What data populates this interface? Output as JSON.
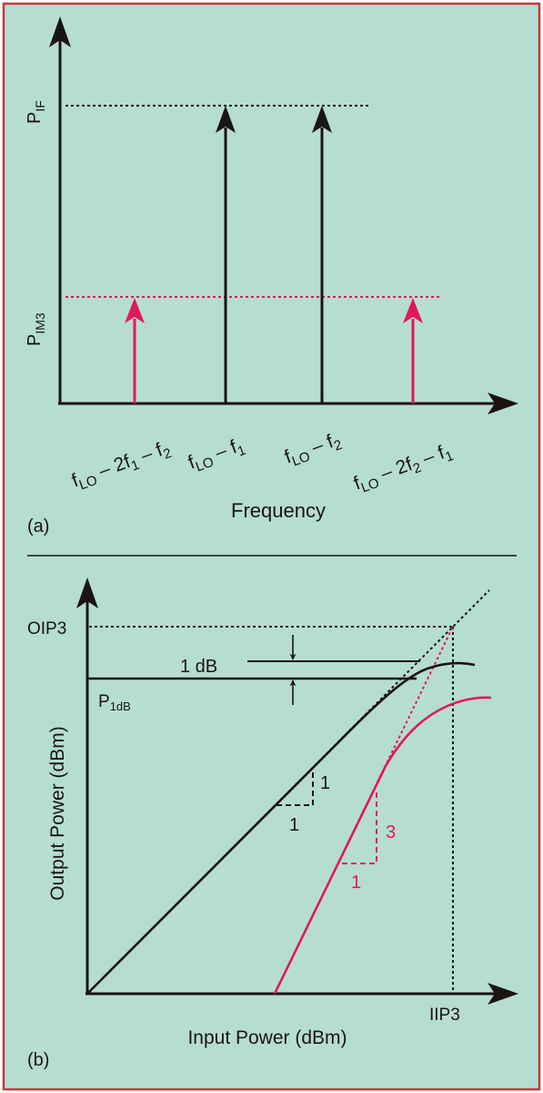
{
  "colors": {
    "background": "#b6ddd2",
    "border": "#c8373c",
    "ink": "#1a1413",
    "accent": "#e0195a"
  },
  "panel_a": {
    "label": "(a)",
    "y_label_if_main": "P",
    "y_label_if_sub": "IF",
    "y_label_im3_main": "P",
    "y_label_im3_sub": "IM3",
    "x_axis_label": "Frequency",
    "tones": [
      {
        "main1": "f",
        "sub1": "LO",
        "main2": " – 2f",
        "sub2": "1",
        "main3": " – f",
        "sub3": "2",
        "kind": "im3"
      },
      {
        "main1": "f",
        "sub1": "LO",
        "main2": " – f",
        "sub2": "1",
        "main3": "",
        "sub3": "",
        "kind": "if"
      },
      {
        "main1": "f",
        "sub1": "LO",
        "main2": " – f",
        "sub2": "2",
        "main3": "",
        "sub3": "",
        "kind": "if"
      },
      {
        "main1": "f",
        "sub1": "LO",
        "main2": " – 2f",
        "sub2": "2",
        "main3": " – f",
        "sub3": "1",
        "kind": "im3"
      }
    ]
  },
  "panel_b": {
    "label": "(b)",
    "oip3_label": "OIP3",
    "iip3_label": "IIP3",
    "compression_label": "1 dB",
    "p1db_main": "P",
    "p1db_sub": "1dB",
    "fund_slope_rise": "1",
    "fund_slope_run": "1",
    "im3_slope_rise": "3",
    "im3_slope_run": "1",
    "x_axis_label": "Input Power (dBm)",
    "y_axis_label": "Output Power (dBm)"
  }
}
